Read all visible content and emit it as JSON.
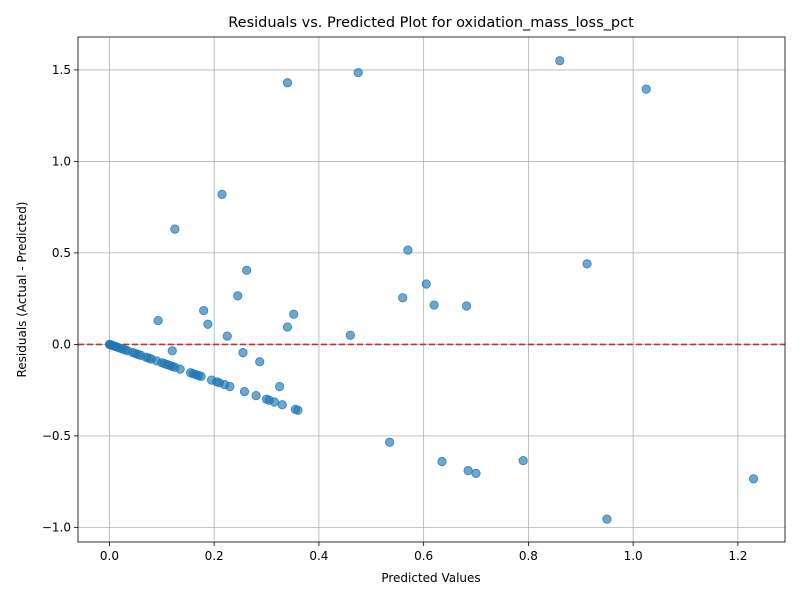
{
  "chart_data": {
    "type": "scatter",
    "title": "Residuals vs. Predicted Plot for oxidation_mass_loss_pct",
    "xlabel": "Predicted Values",
    "ylabel": "Residuals (Actual - Predicted)",
    "xlim": [
      -0.06,
      1.29
    ],
    "ylim": [
      -1.08,
      1.68
    ],
    "xticks": [
      0.0,
      0.2,
      0.4,
      0.6,
      0.8,
      1.0,
      1.2
    ],
    "xtick_labels": [
      "0.0",
      "0.2",
      "0.4",
      "0.6",
      "0.8",
      "1.0",
      "1.2"
    ],
    "yticks": [
      -1.0,
      -0.5,
      0.0,
      0.5,
      1.0,
      1.5
    ],
    "ytick_labels": [
      "−1.0",
      "−0.5",
      "0.0",
      "0.5",
      "1.0",
      "1.5"
    ],
    "grid": true,
    "reference_line": {
      "y": 0,
      "style": "dashed",
      "color": "#d62728"
    },
    "point_color": "#1f77b4",
    "line_points": [
      [
        0.0,
        0.0
      ],
      [
        0.002,
        -0.002
      ],
      [
        0.004,
        -0.004
      ],
      [
        0.006,
        -0.006
      ],
      [
        0.008,
        -0.008
      ],
      [
        0.012,
        -0.012
      ],
      [
        0.016,
        -0.016
      ],
      [
        0.02,
        -0.02
      ],
      [
        0.025,
        -0.025
      ],
      [
        0.03,
        -0.03
      ],
      [
        0.035,
        -0.035
      ],
      [
        0.045,
        -0.045
      ],
      [
        0.05,
        -0.05
      ],
      [
        0.055,
        -0.055
      ],
      [
        0.06,
        -0.06
      ],
      [
        0.07,
        -0.07
      ],
      [
        0.075,
        -0.075
      ],
      [
        0.08,
        -0.08
      ],
      [
        0.09,
        -0.09
      ],
      [
        0.1,
        -0.1
      ],
      [
        0.105,
        -0.105
      ],
      [
        0.11,
        -0.11
      ],
      [
        0.115,
        -0.115
      ],
      [
        0.12,
        -0.12
      ],
      [
        0.125,
        -0.125
      ],
      [
        0.135,
        -0.135
      ],
      [
        0.155,
        -0.155
      ],
      [
        0.16,
        -0.16
      ],
      [
        0.165,
        -0.165
      ],
      [
        0.17,
        -0.17
      ],
      [
        0.175,
        -0.175
      ],
      [
        0.195,
        -0.195
      ],
      [
        0.205,
        -0.205
      ],
      [
        0.21,
        -0.21
      ],
      [
        0.22,
        -0.22
      ],
      [
        0.23,
        -0.23
      ],
      [
        0.258,
        -0.258
      ],
      [
        0.28,
        -0.28
      ],
      [
        0.3,
        -0.3
      ],
      [
        0.305,
        -0.305
      ],
      [
        0.315,
        -0.315
      ],
      [
        0.33,
        -0.33
      ],
      [
        0.355,
        -0.355
      ],
      [
        0.36,
        -0.36
      ]
    ],
    "outlier_points": [
      [
        0.093,
        0.13
      ],
      [
        0.12,
        -0.035
      ],
      [
        0.125,
        0.63
      ],
      [
        0.18,
        0.185
      ],
      [
        0.188,
        0.11
      ],
      [
        0.215,
        0.82
      ],
      [
        0.225,
        0.045
      ],
      [
        0.245,
        0.265
      ],
      [
        0.255,
        -0.045
      ],
      [
        0.262,
        0.405
      ],
      [
        0.287,
        -0.095
      ],
      [
        0.325,
        -0.23
      ],
      [
        0.34,
        0.095
      ],
      [
        0.34,
        1.43
      ],
      [
        0.352,
        0.165
      ],
      [
        0.46,
        0.05
      ],
      [
        0.475,
        1.485
      ],
      [
        0.535,
        -0.535
      ],
      [
        0.56,
        0.255
      ],
      [
        0.57,
        0.515
      ],
      [
        0.605,
        0.33
      ],
      [
        0.62,
        0.215
      ],
      [
        0.635,
        -0.64
      ],
      [
        0.682,
        0.21
      ],
      [
        0.685,
        -0.69
      ],
      [
        0.7,
        -0.705
      ],
      [
        0.79,
        -0.635
      ],
      [
        0.86,
        1.55
      ],
      [
        0.912,
        0.44
      ],
      [
        0.95,
        -0.955
      ],
      [
        1.025,
        1.395
      ],
      [
        1.23,
        -0.735
      ]
    ]
  }
}
